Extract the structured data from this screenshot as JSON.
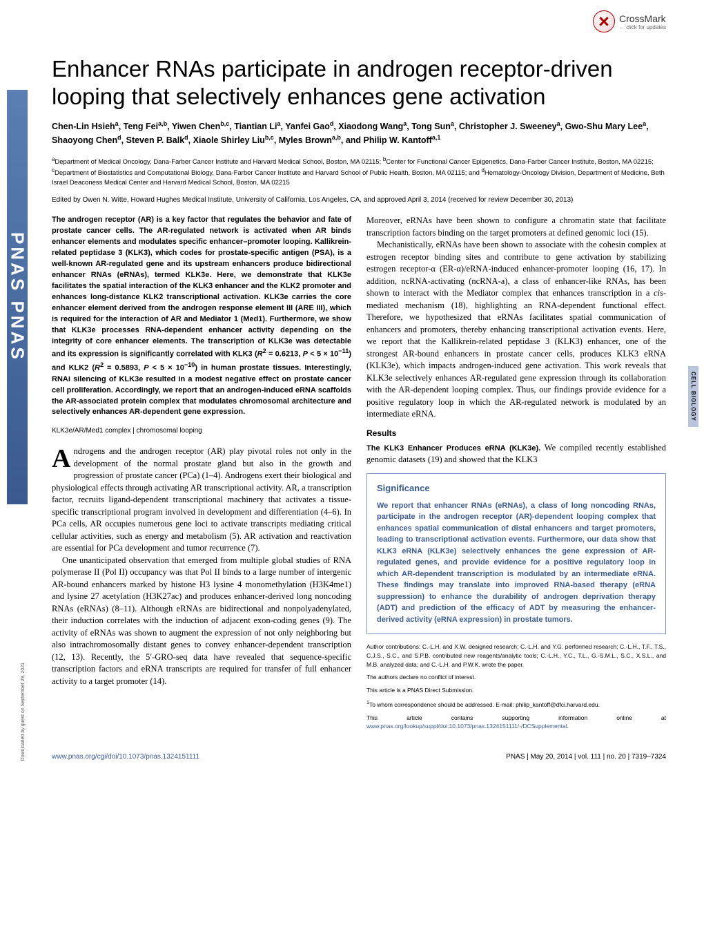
{
  "journal_side": "PNAS  PNAS",
  "crossmark": {
    "label": "CrossMark",
    "sub": "← click for updates"
  },
  "side_label": "CELL BIOLOGY",
  "title": "Enhancer RNAs participate in androgen receptor-driven looping that selectively enhances gene activation",
  "authors_html": "Chen-Lin Hsieh<sup>a</sup>, Teng Fei<sup>a,b</sup>, Yiwen Chen<sup>b,c</sup>, Tiantian Li<sup>a</sup>, Yanfei Gao<sup>d</sup>, Xiaodong Wang<sup>a</sup>, Tong Sun<sup>a</sup>, Christopher J. Sweeney<sup>a</sup>, Gwo-Shu Mary Lee<sup>a</sup>, Shaoyong Chen<sup>d</sup>, Steven P. Balk<sup>d</sup>, Xiaole Shirley Liu<sup>b,c</sup>, Myles Brown<sup>a,b</sup>, and Philip W. Kantoff<sup>a,1</sup>",
  "affiliations_html": "<sup>a</sup>Department of Medical Oncology, Dana-Farber Cancer Institute and Harvard Medical School, Boston, MA 02115; <sup>b</sup>Center for Functional Cancer Epigenetics, Dana-Farber Cancer Institute, Boston, MA 02215; <sup>c</sup>Department of Biostatistics and Computational Biology, Dana-Farber Cancer Institute and Harvard School of Public Health, Boston, MA 02115; and <sup>d</sup>Hematology-Oncology Division, Department of Medicine, Beth Israel Deaconess Medical Center and Harvard Medical School, Boston, MA 02215",
  "edited": "Edited by Owen N. Witte, Howard Hughes Medical Institute, University of California, Los Angeles, CA, and approved April 3, 2014 (received for review December 30, 2013)",
  "abstract_html": "The androgen receptor (AR) is a key factor that regulates the behavior and fate of prostate cancer cells. The AR-regulated network is activated when AR binds enhancer elements and modulates specific enhancer–promoter looping. Kallikrein-related peptidase 3 (KLK3), which codes for prostate-specific antigen (PSA), is a well-known AR-regulated gene and its upstream enhancers produce bidirectional enhancer RNAs (eRNAs), termed KLK3e. Here, we demonstrate that KLK3e facilitates the spatial interaction of the KLK3 enhancer and the KLK2 promoter and enhances long-distance KLK2 transcriptional activation. KLK3e carries the core enhancer element derived from the androgen response element III (ARE III), which is required for the interaction of AR and Mediator 1 (Med1). Furthermore, we show that KLK3e processes RNA-dependent enhancer activity depending on the integrity of core enhancer elements. The transcription of KLK3e was detectable and its expression is significantly correlated with KLK3 (<i>R</i><sup>2</sup> = 0.6213, <i>P</i> &lt; 5 × 10<sup>−11</sup>) and KLK2 (<i>R</i><sup>2</sup> = 0.5893, <i>P</i> &lt; 5 × 10<sup>−10</sup>) in human prostate tissues. Interestingly, RNAi silencing of KLK3e resulted in a modest negative effect on prostate cancer cell proliferation. Accordingly, we report that an androgen-induced eRNA scaffolds the AR-associated protein complex that modulates chromosomal architecture and selectively enhances AR-dependent gene expression.",
  "keywords": "KLK3e/AR/Med1 complex | chromosomal looping",
  "col1_body": [
    "ndrogens and the androgen receptor (AR) play pivotal roles not only in the development of the normal prostate gland but also in the growth and progression of prostate cancer (PCa) (1–4). Androgens exert their biological and physiological effects through activating AR transcriptional activity. AR, a transcription factor, recruits ligand-dependent transcriptional machinery that activates a tissue-specific transcriptional program involved in development and differentiation (4–6). In PCa cells, AR occupies numerous gene loci to activate transcripts mediating critical cellular activities, such as energy and metabolism (5). AR activation and reactivation are essential for PCa development and tumor recurrence (7).",
    "One unanticipated observation that emerged from multiple global studies of RNA polymerase II (Pol II) occupancy was that Pol II binds to a large number of intergenic AR-bound enhancers marked by histone H3 lysine 4 monomethylation (H3K4me1) and lysine 27 acetylation (H3K27ac) and produces enhancer-derived long noncoding RNAs (eRNAs) (8–11). Although eRNAs are bidirectional and nonpolyadenylated, their induction correlates with the induction of adjacent exon-coding genes (9). The activity of eRNAs was shown to augment the expression of not only neighboring but also intrachromosomally distant genes to convey enhancer-dependent transcription (12, 13). Recently, the 5′-GRO-seq data have revealed that sequence-specific transcription factors and eRNA transcripts are required for transfer of full enhancer activity to a target promoter (14)."
  ],
  "col2_intro": "Moreover, eRNAs have been shown to configure a chromatin state that facilitate transcription factors binding on the target promoters at defined genomic loci (15).",
  "col2_para2_html": "Mechanistically, eRNAs have been shown to associate with the cohesin complex at estrogen receptor binding sites and contribute to gene activation by stabilizing estrogen receptor-α (ER-α)/eRNA-induced enhancer-promoter looping (16, 17). In addition, ncRNA-activating (ncRNA-a), a class of enhancer-like RNAs, has been shown to interact with the Mediator complex that enhances transcription in a <i>cis</i>-mediated mechanism (18), highlighting an RNA-dependent functional effect. Therefore, we hypothesized that eRNAs facilitates spatial communication of enhancers and promoters, thereby enhancing transcriptional activation events. Here, we report that the Kallikrein-related peptidase 3 (KLK3) enhancer, one of the strongest AR-bound enhancers in prostate cancer cells, produces KLK3 eRNA (KLK3e), which impacts androgen-induced gene activation. This work reveals that KLK3e selectively enhances AR-regulated gene expression through its collaboration with the AR-dependent looping complex. Thus, our findings provide evidence for a positive regulatory loop in which the AR-regulated network is modulated by an intermediate eRNA.",
  "results_h": "Results",
  "results_sub": "The KLK3 Enhancer Produces eRNA (KLK3e).",
  "results_text": " We compiled recently established genomic datasets (19) and showed that the KLK3",
  "significance": {
    "heading": "Significance",
    "body": "We report that enhancer RNAs (eRNAs), a class of long noncoding RNAs, participate in the androgen receptor (AR)-dependent looping complex that enhances spatial communication of distal enhancers and target promoters, leading to transcriptional activation events. Furthermore, our data show that KLK3 eRNA (KLK3e) selectively enhances the gene expression of AR-regulated genes, and provide evidence for a positive regulatory loop in which AR-dependent transcription is modulated by an intermediate eRNA. These findings may translate into improved RNA-based therapy (eRNA suppression) to enhance the durability of androgen deprivation therapy (ADT) and prediction of the efficacy of ADT by measuring the enhancer-derived activity (eRNA expression) in prostate tumors."
  },
  "meta": {
    "contributions": "Author contributions: C.-L.H. and X.W. designed research; C.-L.H. and Y.G. performed research; C.-L.H., T.F., T.S., C.J.S., S.C., and S.P.B. contributed new reagents/analytic tools; C.-L.H., Y.C., T.L., G.-S.M.L., S.C., X.S.L., and M.B. analyzed data; and C.-L.H. and P.W.K. wrote the paper.",
    "coi": "The authors declare no conflict of interest.",
    "submission": "This article is a PNAS Direct Submission.",
    "corr_html": "<sup>1</sup>To whom correspondence should be addressed. E-mail: philip_kantoff@dfci.harvard.edu.",
    "si_html": "This article contains supporting information online at <a href='#'>www.pnas.org/lookup/suppl/doi:10.1073/pnas.1324151111/-/DCSupplemental</a>."
  },
  "footer": {
    "left": "www.pnas.org/cgi/doi/10.1073/pnas.1324151111",
    "right": "PNAS | May 20, 2014 | vol. 111 | no. 20 | 7319–7324"
  },
  "download_note": "Downloaded by guest on September 29, 2021",
  "colors": {
    "link": "#3a5a8f",
    "side_grad_top": "#5b7fb3",
    "side_grad_bot": "#3a5a8f",
    "sig_border": "#7a95c4",
    "side_label_bg": "#b8c5da"
  }
}
